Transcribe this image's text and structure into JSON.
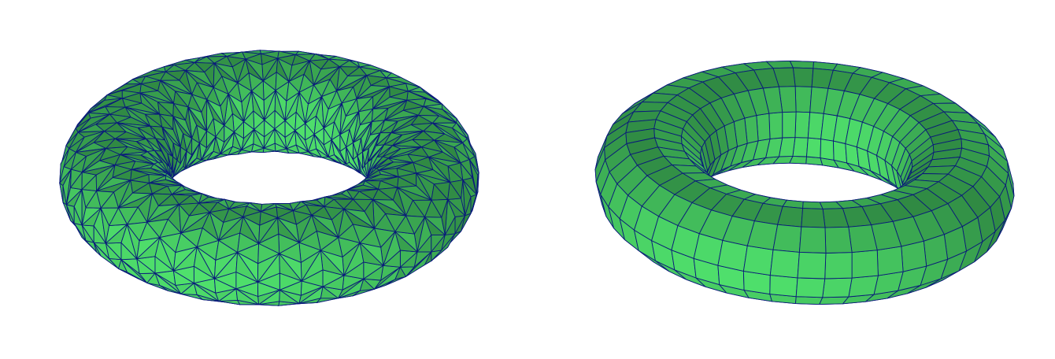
{
  "figures": [
    {
      "id": "torus-triangle",
      "mesh": "triangle",
      "rings": 16,
      "segments": 60
    },
    {
      "id": "torus-quad",
      "mesh": "quad",
      "rings": 12,
      "segments": 48
    }
  ],
  "colors": {
    "background": "#ffffff",
    "fill_light": "#4fe06c",
    "fill_dark": "#2a7a3c",
    "edge": "#0a1a7a"
  }
}
